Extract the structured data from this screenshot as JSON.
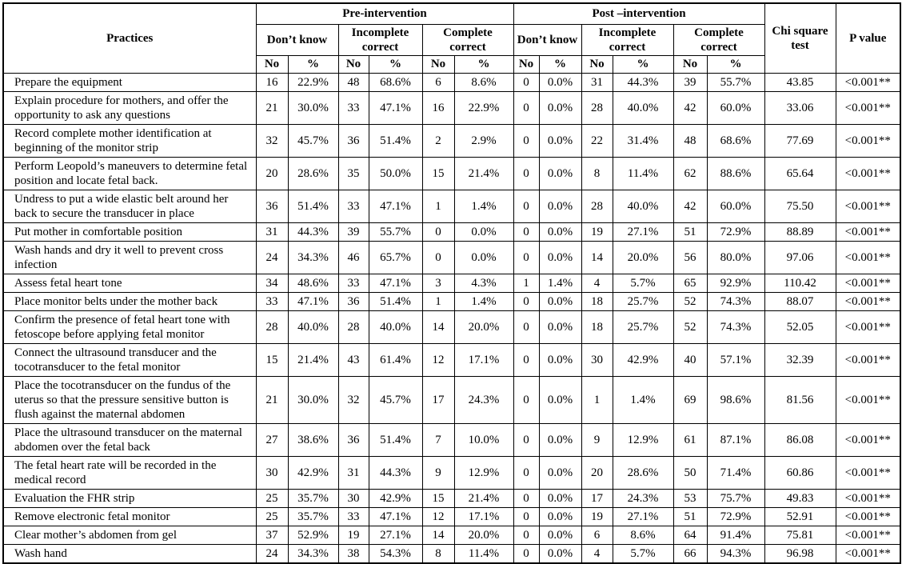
{
  "table": {
    "header": {
      "practices": "Practices",
      "pre_intervention": "Pre-intervention",
      "post_intervention": "Post –intervention",
      "groups": [
        "Don’t know",
        "Incomplete correct",
        "Complete correct"
      ],
      "no_label": "No",
      "pct_label": "%",
      "chi_square": "Chi square test",
      "p_value": "P value"
    },
    "rows": [
      {
        "practice": "Prepare the equipment",
        "values": [
          "16",
          "22.9%",
          "48",
          "68.6%",
          "6",
          "8.6%",
          "0",
          "0.0%",
          "31",
          "44.3%",
          "39",
          "55.7%"
        ],
        "chi_square": "43.85",
        "p_value": "<0.001**"
      },
      {
        "practice": "Explain procedure for mothers, and offer the opportunity to ask any questions",
        "values": [
          "21",
          "30.0%",
          "33",
          "47.1%",
          "16",
          "22.9%",
          "0",
          "0.0%",
          "28",
          "40.0%",
          "42",
          "60.0%"
        ],
        "chi_square": "33.06",
        "p_value": "<0.001**"
      },
      {
        "practice": "Record complete mother identification at beginning of the monitor strip",
        "values": [
          "32",
          "45.7%",
          "36",
          "51.4%",
          "2",
          "2.9%",
          "0",
          "0.0%",
          "22",
          "31.4%",
          "48",
          "68.6%"
        ],
        "chi_square": "77.69",
        "p_value": "<0.001**"
      },
      {
        "practice": "Perform Leopold’s maneuvers to determine fetal position and locate fetal back.",
        "values": [
          "20",
          "28.6%",
          "35",
          "50.0%",
          "15",
          "21.4%",
          "0",
          "0.0%",
          "8",
          "11.4%",
          "62",
          "88.6%"
        ],
        "chi_square": "65.64",
        "p_value": "<0.001**"
      },
      {
        "practice": "Undress to put a wide elastic belt around her back to secure the transducer in place",
        "values": [
          "36",
          "51.4%",
          "33",
          "47.1%",
          "1",
          "1.4%",
          "0",
          "0.0%",
          "28",
          "40.0%",
          "42",
          "60.0%"
        ],
        "chi_square": "75.50",
        "p_value": "<0.001**"
      },
      {
        "practice": "Put mother in comfortable position",
        "values": [
          "31",
          "44.3%",
          "39",
          "55.7%",
          "0",
          "0.0%",
          "0",
          "0.0%",
          "19",
          "27.1%",
          "51",
          "72.9%"
        ],
        "chi_square": "88.89",
        "p_value": "<0.001**"
      },
      {
        "practice": "Wash hands and dry it well to prevent cross infection",
        "values": [
          "24",
          "34.3%",
          "46",
          "65.7%",
          "0",
          "0.0%",
          "0",
          "0.0%",
          "14",
          "20.0%",
          "56",
          "80.0%"
        ],
        "chi_square": "97.06",
        "p_value": "<0.001**"
      },
      {
        "practice": "Assess fetal heart tone",
        "values": [
          "34",
          "48.6%",
          "33",
          "47.1%",
          "3",
          "4.3%",
          "1",
          "1.4%",
          "4",
          "5.7%",
          "65",
          "92.9%"
        ],
        "chi_square": "110.42",
        "p_value": "<0.001**"
      },
      {
        "practice": "Place monitor belts under the mother back",
        "values": [
          "33",
          "47.1%",
          "36",
          "51.4%",
          "1",
          "1.4%",
          "0",
          "0.0%",
          "18",
          "25.7%",
          "52",
          "74.3%"
        ],
        "chi_square": "88.07",
        "p_value": "<0.001**"
      },
      {
        "practice": "Confirm the presence of fetal heart tone with fetoscope before applying fetal monitor",
        "values": [
          "28",
          "40.0%",
          "28",
          "40.0%",
          "14",
          "20.0%",
          "0",
          "0.0%",
          "18",
          "25.7%",
          "52",
          "74.3%"
        ],
        "chi_square": "52.05",
        "p_value": "<0.001**"
      },
      {
        "practice": "Connect the ultrasound transducer and the tocotransducer to the fetal monitor",
        "values": [
          "15",
          "21.4%",
          "43",
          "61.4%",
          "12",
          "17.1%",
          "0",
          "0.0%",
          "30",
          "42.9%",
          "40",
          "57.1%"
        ],
        "chi_square": "32.39",
        "p_value": "<0.001**"
      },
      {
        "practice": "Place the tocotransducer on the fundus of the uterus so that the pressure sensitive button is flush against the maternal abdomen",
        "values": [
          "21",
          "30.0%",
          "32",
          "45.7%",
          "17",
          "24.3%",
          "0",
          "0.0%",
          "1",
          "1.4%",
          "69",
          "98.6%"
        ],
        "chi_square": "81.56",
        "p_value": "<0.001**"
      },
      {
        "practice": "Place the ultrasound transducer on the maternal abdomen over the fetal back",
        "values": [
          "27",
          "38.6%",
          "36",
          "51.4%",
          "7",
          "10.0%",
          "0",
          "0.0%",
          "9",
          "12.9%",
          "61",
          "87.1%"
        ],
        "chi_square": "86.08",
        "p_value": "<0.001**"
      },
      {
        "practice": "The fetal heart rate will be recorded in the medical record",
        "values": [
          "30",
          "42.9%",
          "31",
          "44.3%",
          "9",
          "12.9%",
          "0",
          "0.0%",
          "20",
          "28.6%",
          "50",
          "71.4%"
        ],
        "chi_square": "60.86",
        "p_value": "<0.001**"
      },
      {
        "practice": "Evaluation the FHR strip",
        "values": [
          "25",
          "35.7%",
          "30",
          "42.9%",
          "15",
          "21.4%",
          "0",
          "0.0%",
          "17",
          "24.3%",
          "53",
          "75.7%"
        ],
        "chi_square": "49.83",
        "p_value": "<0.001**"
      },
      {
        "practice": "Remove electronic fetal monitor",
        "values": [
          "25",
          "35.7%",
          "33",
          "47.1%",
          "12",
          "17.1%",
          "0",
          "0.0%",
          "19",
          "27.1%",
          "51",
          "72.9%"
        ],
        "chi_square": "52.91",
        "p_value": "<0.001**"
      },
      {
        "practice": "Clear mother’s abdomen from gel",
        "values": [
          "37",
          "52.9%",
          "19",
          "27.1%",
          "14",
          "20.0%",
          "0",
          "0.0%",
          "6",
          "8.6%",
          "64",
          "91.4%"
        ],
        "chi_square": "75.81",
        "p_value": "<0.001**"
      },
      {
        "practice": "Wash hand",
        "values": [
          "24",
          "34.3%",
          "38",
          "54.3%",
          "8",
          "11.4%",
          "0",
          "0.0%",
          "4",
          "5.7%",
          "66",
          "94.3%"
        ],
        "chi_square": "96.98",
        "p_value": "<0.001**"
      }
    ]
  }
}
